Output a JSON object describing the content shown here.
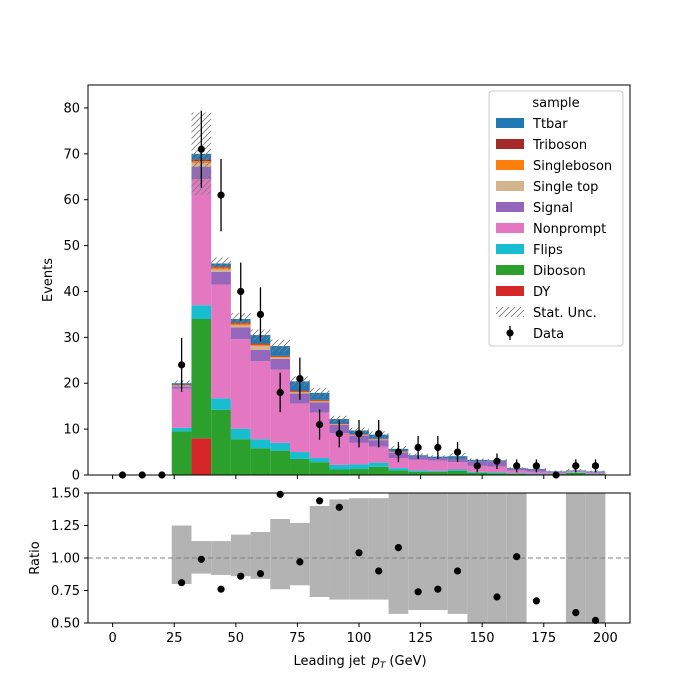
{
  "chart_data": [
    {
      "type": "bar",
      "stacked": true,
      "ylabel": "Events",
      "ylim": [
        0,
        85
      ],
      "xlim": [
        -10,
        210
      ],
      "xticks": [
        0,
        25,
        50,
        75,
        100,
        125,
        150,
        175,
        200
      ],
      "yticks": [
        0,
        10,
        20,
        30,
        40,
        50,
        60,
        70,
        80
      ],
      "bin_edges": [
        0,
        8,
        16,
        24,
        32,
        40,
        48,
        56,
        64,
        72,
        80,
        88,
        96,
        104,
        112,
        120,
        128,
        136,
        144,
        152,
        160,
        168,
        176,
        184,
        192,
        200
      ],
      "legend": {
        "title": "sample",
        "placement": "top-right",
        "entries": [
          "Ttbar",
          "Triboson",
          "Singleboson",
          "Single top",
          "Signal",
          "Nonprompt",
          "Flips",
          "Diboson",
          "DY",
          "Stat. Unc.",
          "Data"
        ]
      },
      "series": [
        {
          "name": "DY",
          "color": "#d62728",
          "values": [
            0,
            0,
            0,
            0,
            8,
            0,
            0,
            0,
            0,
            0,
            0,
            0,
            0,
            0,
            0,
            0,
            0,
            0,
            0,
            0,
            0,
            0,
            0,
            0,
            0
          ]
        },
        {
          "name": "Diboson",
          "color": "#2ca02c",
          "values": [
            0,
            0,
            0,
            9.5,
            26,
            14.2,
            7.8,
            5.8,
            5.3,
            3.5,
            2.8,
            1.2,
            1.3,
            1.8,
            1.0,
            0.7,
            0.7,
            0.9,
            0.5,
            0.4,
            0.3,
            0.2,
            0.2,
            0.5,
            0.2
          ]
        },
        {
          "name": "Flips",
          "color": "#17becf",
          "values": [
            0,
            0,
            0,
            0.8,
            3,
            2.5,
            2.3,
            2.0,
            1.7,
            1.5,
            0.9,
            1.0,
            1.0,
            0.9,
            0.5,
            0.3,
            0.2,
            0.3,
            0.2,
            0.2,
            0.1,
            0.1,
            0.1,
            0.1,
            0.1
          ]
        },
        {
          "name": "Nonprompt",
          "color": "#e377c2",
          "values": [
            0,
            0,
            0,
            8.5,
            27.5,
            24.8,
            19.5,
            17.0,
            16.0,
            10.6,
            9.9,
            6.9,
            4.7,
            3.5,
            2.2,
            2.3,
            2.2,
            1.6,
            1.3,
            1.2,
            0.6,
            0.4,
            0.2,
            0.2,
            0.2
          ]
        },
        {
          "name": "Signal",
          "color": "#9467bd",
          "values": [
            0,
            0,
            0,
            0.5,
            2.7,
            2.8,
            2.6,
            2.5,
            2.3,
            2.2,
            2.2,
            1.8,
            1.6,
            1.4,
            1.2,
            0.7,
            0.6,
            0.7,
            1.0,
            1.2,
            0.4,
            0.5,
            0.2,
            0.1,
            0.2
          ]
        },
        {
          "name": "Single top",
          "color": "#d4b48c",
          "values": [
            0,
            0,
            0,
            0.2,
            0.8,
            0.5,
            0.4,
            0.8,
            0.3,
            0.2,
            0.2,
            0.1,
            0.1,
            0.1,
            0.1,
            0,
            0,
            0,
            0,
            0,
            0,
            0,
            0,
            0,
            0
          ]
        },
        {
          "name": "Singleboson",
          "color": "#ff7f0e",
          "values": [
            0,
            0,
            0,
            0.1,
            0.4,
            0.4,
            0.4,
            0.3,
            0.2,
            0.2,
            0.2,
            0.1,
            0.1,
            0.1,
            0.1,
            0,
            0,
            0,
            0,
            0,
            0,
            0,
            0,
            0,
            0
          ]
        },
        {
          "name": "Triboson",
          "color": "#a52a2a",
          "values": [
            0,
            0,
            0,
            0.1,
            0.4,
            0.3,
            0.3,
            0.3,
            0.2,
            0.2,
            0.2,
            0.1,
            0.1,
            0.1,
            0.1,
            0,
            0,
            0,
            0,
            0,
            0,
            0,
            0,
            0,
            0
          ]
        },
        {
          "name": "Ttbar",
          "color": "#1f77b4",
          "values": [
            0,
            0,
            0,
            0.3,
            1.2,
            0.6,
            0.7,
            1.8,
            2.1,
            2.0,
            1.5,
            1.0,
            0.8,
            0.9,
            0.5,
            0.3,
            0.3,
            0.6,
            0.3,
            0.2,
            0.1,
            0.1,
            0.1,
            0.1,
            0.1
          ]
        }
      ],
      "stat_unc": [
        0,
        0,
        0,
        0.6,
        9.0,
        1.3,
        1.3,
        1.2,
        1.4,
        1.1,
        1.1,
        0.7,
        0.6,
        0.7,
        0.6,
        0.4,
        0.3,
        0.7,
        0.3,
        0.3,
        0.2,
        0.2,
        0.2,
        0.3,
        0.2
      ],
      "data_points": {
        "x": [
          4,
          12,
          20,
          28,
          36,
          44,
          52,
          60,
          68,
          76,
          84,
          92,
          100,
          108,
          116,
          124,
          132,
          140,
          148,
          156,
          164,
          172,
          180,
          188,
          196
        ],
        "y": [
          0,
          0,
          0,
          24,
          71,
          61,
          40,
          35,
          18,
          21,
          11,
          9,
          9,
          9,
          5,
          6,
          6,
          5,
          2,
          3,
          2,
          2,
          0,
          2,
          2
        ],
        "yerr": [
          0,
          0,
          0,
          5.9,
          8.4,
          7.9,
          6.3,
          5.9,
          4.3,
          4.6,
          3.3,
          3.0,
          3.0,
          3.0,
          2.2,
          2.5,
          2.5,
          2.2,
          1.4,
          1.7,
          1.4,
          1.4,
          0,
          1.4,
          1.4
        ]
      }
    },
    {
      "type": "scatter",
      "xlabel": "Leading jet",
      "xlabel_math": "p",
      "xlabel_sub": "T",
      "xlabel_unit": "(GeV)",
      "ylabel": "Ratio",
      "ylim": [
        0.5,
        1.5
      ],
      "xlim": [
        -10,
        210
      ],
      "xticks": [
        0,
        25,
        50,
        75,
        100,
        125,
        150,
        175,
        200
      ],
      "yticks": [
        "0.50",
        "0.75",
        "1.00",
        "1.25",
        "1.50"
      ],
      "reference_line": 1.0,
      "unc_band": [
        {
          "x0": 24,
          "x1": 32,
          "lo": 0.8,
          "hi": 1.25
        },
        {
          "x0": 32,
          "x1": 40,
          "lo": 0.88,
          "hi": 1.13
        },
        {
          "x0": 40,
          "x1": 48,
          "lo": 0.87,
          "hi": 1.13
        },
        {
          "x0": 48,
          "x1": 56,
          "lo": 0.86,
          "hi": 1.18
        },
        {
          "x0": 56,
          "x1": 64,
          "lo": 0.84,
          "hi": 1.2
        },
        {
          "x0": 64,
          "x1": 72,
          "lo": 0.76,
          "hi": 1.3
        },
        {
          "x0": 72,
          "x1": 80,
          "lo": 0.79,
          "hi": 1.27
        },
        {
          "x0": 80,
          "x1": 88,
          "lo": 0.7,
          "hi": 1.4
        },
        {
          "x0": 88,
          "x1": 96,
          "lo": 0.68,
          "hi": 1.45
        },
        {
          "x0": 96,
          "x1": 104,
          "lo": 0.68,
          "hi": 1.46
        },
        {
          "x0": 104,
          "x1": 112,
          "lo": 0.68,
          "hi": 1.46
        },
        {
          "x0": 112,
          "x1": 120,
          "lo": 0.57,
          "hi": 1.5
        },
        {
          "x0": 120,
          "x1": 128,
          "lo": 0.6,
          "hi": 1.5
        },
        {
          "x0": 128,
          "x1": 136,
          "lo": 0.6,
          "hi": 1.5
        },
        {
          "x0": 136,
          "x1": 144,
          "lo": 0.57,
          "hi": 1.5
        },
        {
          "x0": 144,
          "x1": 152,
          "lo": 0.5,
          "hi": 1.5
        },
        {
          "x0": 152,
          "x1": 160,
          "lo": 0.5,
          "hi": 1.5
        },
        {
          "x0": 160,
          "x1": 168,
          "lo": 0.5,
          "hi": 1.5
        },
        {
          "x0": 184,
          "x1": 192,
          "lo": 0.5,
          "hi": 1.5
        },
        {
          "x0": 192,
          "x1": 200,
          "lo": 0.5,
          "hi": 1.5
        }
      ],
      "points": {
        "x": [
          28,
          36,
          44,
          52,
          60,
          68,
          76,
          84,
          92,
          100,
          108,
          116,
          124,
          132,
          140,
          156,
          164,
          172,
          188,
          196
        ],
        "y": [
          0.81,
          0.99,
          0.76,
          0.86,
          0.88,
          1.49,
          0.97,
          1.44,
          1.39,
          1.04,
          0.9,
          1.08,
          0.74,
          0.76,
          0.9,
          0.7,
          1.01,
          0.67,
          0.58,
          0.52
        ]
      }
    }
  ]
}
